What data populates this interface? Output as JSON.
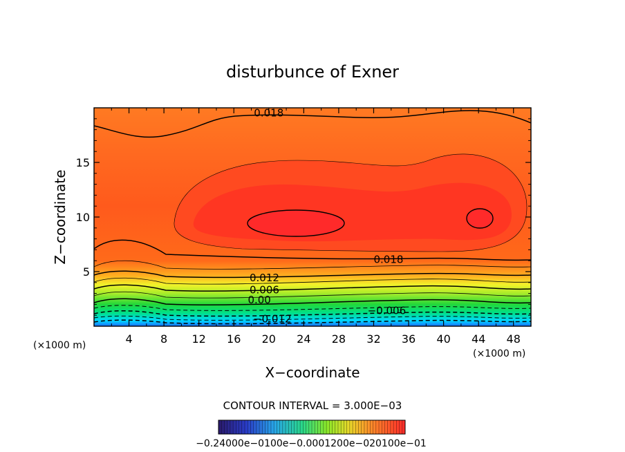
{
  "chart_data": {
    "type": "heatmap",
    "title": "disturbunce of Exner",
    "xlabel": "X−coordinate",
    "ylabel": "Z−coordinate",
    "x_unit_label": "(×1000 m)",
    "y_unit_label": "(×1000 m)",
    "xlim": [
      0,
      50
    ],
    "ylim": [
      0,
      20
    ],
    "xticks": [
      4,
      8,
      12,
      16,
      20,
      24,
      28,
      32,
      36,
      40,
      44,
      48
    ],
    "yticks": [
      5,
      10,
      15
    ],
    "contour_interval_text": "CONTOUR INTERVAL = 3.000E−03",
    "contour_labels": [
      {
        "text": "0.018",
        "x": 18.3,
        "z": 19.2
      },
      {
        "text": "0.018",
        "x": 32.0,
        "z": 5.8
      },
      {
        "text": "0.012",
        "x": 17.8,
        "z": 4.1
      },
      {
        "text": "0.006",
        "x": 17.8,
        "z": 3.0
      },
      {
        "text": "0.00",
        "x": 17.6,
        "z": 2.1
      },
      {
        "text": "−0.006",
        "x": 31.3,
        "z": 1.1
      },
      {
        "text": "−0.012",
        "x": 18.2,
        "z": 0.35
      }
    ],
    "colorbar": {
      "min": -0.024,
      "max": 0.024,
      "tick_text": "−0.24000e−0100e−0.0001200e−020100e−01"
    },
    "colors": {
      "max_red": "#ff2a2a",
      "min_blue": "#1060ff",
      "frame": "#000000"
    }
  }
}
